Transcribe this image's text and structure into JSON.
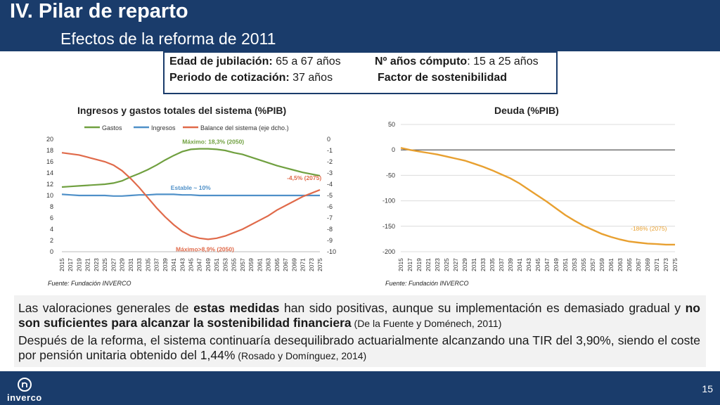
{
  "header": {
    "title": "IV. Pilar de reparto",
    "subtitle": "Efectos de la reforma de 2011"
  },
  "info_box": {
    "row1_left_label": "Edad de jubilación:",
    "row1_left_value": "65 a 67 años",
    "row1_right_label": "Nº años cómputo",
    "row1_right_value": ": 15 a 25 años",
    "row2_left_label": "Periodo de cotización:",
    "row2_left_value": "37 años",
    "row2_right": "Factor de sostenibilidad"
  },
  "chart_data": [
    {
      "type": "line",
      "title": "Ingresos y gastos totales del sistema (%PIB)",
      "x": [
        2015,
        2017,
        2019,
        2021,
        2023,
        2025,
        2027,
        2029,
        2031,
        2033,
        2035,
        2037,
        2039,
        2041,
        2043,
        2045,
        2047,
        2049,
        2051,
        2053,
        2055,
        2057,
        2059,
        2061,
        2063,
        2065,
        2067,
        2069,
        2071,
        2073,
        2075
      ],
      "x_tick_labels": [
        "2015",
        "2017",
        "2019",
        "2021",
        "2023",
        "2025",
        "2027",
        "2029",
        "2031",
        "2033",
        "2035",
        "2037",
        "2039",
        "2041",
        "2043",
        "2045",
        "2047",
        "2049",
        "2051",
        "2053",
        "2055",
        "2057",
        "2059",
        "2061",
        "2063",
        "2065",
        "2067",
        "2069",
        "2071",
        "2073",
        "2075"
      ],
      "ylim": [
        0,
        20
      ],
      "y_ticks": [
        "0",
        "2",
        "4",
        "6",
        "8",
        "10",
        "12",
        "14",
        "16",
        "18",
        "20"
      ],
      "y2lim": [
        -10,
        0
      ],
      "y2_ticks": [
        "-10",
        "-9",
        "-8",
        "-7",
        "-6",
        "-5",
        "-4",
        "-3",
        "-2",
        "-1",
        "0"
      ],
      "series": [
        {
          "name": "Gastos",
          "axis": "left",
          "color": "#70a040",
          "values": [
            11.5,
            11.6,
            11.7,
            11.8,
            11.9,
            12.0,
            12.2,
            12.6,
            13.3,
            13.9,
            14.6,
            15.4,
            16.3,
            17.1,
            17.8,
            18.2,
            18.3,
            18.3,
            18.2,
            18.0,
            17.6,
            17.3,
            16.8,
            16.3,
            15.8,
            15.3,
            14.9,
            14.5,
            14.1,
            13.8,
            13.5
          ]
        },
        {
          "name": "Ingresos",
          "axis": "left",
          "color": "#4f90c8",
          "values": [
            10.2,
            10.1,
            10.0,
            10.0,
            10.0,
            10.0,
            9.9,
            9.9,
            10.0,
            10.1,
            10.1,
            10.2,
            10.2,
            10.2,
            10.1,
            10.1,
            10.0,
            10.0,
            10.0,
            10.0,
            10.0,
            10.0,
            10.0,
            10.0,
            10.0,
            10.0,
            10.0,
            10.0,
            10.0,
            10.0,
            10.0
          ]
        },
        {
          "name": "Balance del sistema (eje dcho.)",
          "axis": "right",
          "color": "#e06a4a",
          "values": [
            -1.2,
            -1.3,
            -1.4,
            -1.6,
            -1.8,
            -2.0,
            -2.3,
            -2.8,
            -3.5,
            -4.3,
            -5.2,
            -6.1,
            -6.9,
            -7.6,
            -8.2,
            -8.6,
            -8.8,
            -8.9,
            -8.8,
            -8.6,
            -8.3,
            -8.0,
            -7.6,
            -7.2,
            -6.8,
            -6.3,
            -5.9,
            -5.5,
            -5.1,
            -4.8,
            -4.5
          ]
        }
      ],
      "annotations": {
        "max_gastos": "Máximo: 18,3% (2050)",
        "stable_ingresos": "Estable ~ 10%",
        "balance_2075": "-4,5% (2075)",
        "max_deficit": "Máximo>8,9% (2050)"
      },
      "source": "Fuente: Fundación INVERCO"
    },
    {
      "type": "line",
      "title": "Deuda (%PIB)",
      "x": [
        2015,
        2017,
        2019,
        2021,
        2023,
        2025,
        2027,
        2029,
        2031,
        2033,
        2035,
        2037,
        2039,
        2041,
        2043,
        2045,
        2047,
        2049,
        2051,
        2053,
        2055,
        2057,
        2059,
        2061,
        2063,
        2065,
        2067,
        2069,
        2071,
        2073,
        2075
      ],
      "x_tick_labels": [
        "2015",
        "2017",
        "2019",
        "2021",
        "2023",
        "2025",
        "2027",
        "2029",
        "2031",
        "2033",
        "2035",
        "2037",
        "2039",
        "2041",
        "2043",
        "2045",
        "2047",
        "2049",
        "2051",
        "2053",
        "2055",
        "2057",
        "2059",
        "2061",
        "2063",
        "2065",
        "2067",
        "2069",
        "2071",
        "2073",
        "2075"
      ],
      "ylim": [
        -200,
        50
      ],
      "y_ticks": [
        "-200",
        "-150",
        "-100",
        "-50",
        "0",
        "50"
      ],
      "series": [
        {
          "name": "Deuda",
          "color": "#e8a030",
          "values": [
            4,
            0,
            -3,
            -6,
            -9,
            -13,
            -17,
            -21,
            -27,
            -33,
            -40,
            -48,
            -56,
            -66,
            -78,
            -90,
            -102,
            -115,
            -128,
            -139,
            -149,
            -157,
            -165,
            -171,
            -176,
            -180,
            -182,
            -184,
            -185,
            -186,
            -186
          ]
        }
      ],
      "annotations": {
        "end_label": "-186% (2075)"
      },
      "source": "Fuente: Fundación INVERCO"
    }
  ],
  "text_block": {
    "p1_a": "Las valoraciones generales de ",
    "p1_b": "estas medidas",
    "p1_c": " han sido positivas, aunque su implementación es demasiado gradual y ",
    "p1_d": "no son suficientes para alcanzar la sostenibilidad financiera",
    "p1_cite": " (De la Fuente y Doménech, 2011)",
    "p2_a": "Después de la reforma, el sistema continuaría desequilibrado actuarialmente alcanzando una TIR del 3,90%, siendo el coste por pensión unitaria obtenido del 1,44%",
    "p2_cite": " (Rosado y Domínguez, 2014)"
  },
  "footer": {
    "logo_text": "inverco",
    "page_number": "15"
  },
  "colors": {
    "header_bg": "#1a3c6b",
    "gastos": "#70a040",
    "ingresos": "#4f90c8",
    "balance": "#e06a4a",
    "deuda": "#e8a030"
  }
}
